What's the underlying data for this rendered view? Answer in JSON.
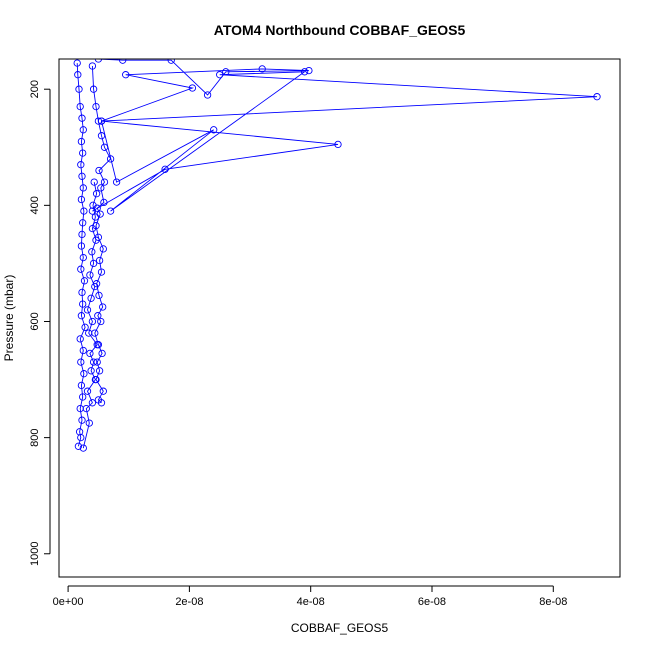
{
  "chart_data": {
    "type": "line",
    "title": "ATOM4 Northbound COBBAF_GEOS5",
    "xlabel": "COBBAF_GEOS5",
    "ylabel": "Pressure (mbar)",
    "xlim": [
      -1.5e-09,
      9.1e-08
    ],
    "ylim": [
      1040,
      148
    ],
    "y_inverted": true,
    "x_ticks": [
      0,
      2e-08,
      4e-08,
      6e-08,
      8e-08
    ],
    "x_tick_labels": [
      "0e+00",
      "2e-08",
      "4e-08",
      "6e-08",
      "8e-08"
    ],
    "y_ticks": [
      200,
      400,
      600,
      800,
      1000
    ],
    "y_tick_labels": [
      "200",
      "400",
      "600",
      "800",
      "1000"
    ],
    "marker": "open-circle",
    "series_color": "#0000ff",
    "grid": false,
    "series": [
      {
        "x": [
          1.7e-09,
          2.1e-09,
          1.9e-09,
          2.3e-09,
          2e-09,
          2.4e-09,
          2.2e-09,
          2.6e-09,
          2.1e-09,
          2.5e-09,
          2e-09,
          2.8e-09,
          2.2e-09,
          2.4e-09,
          2.3e-09,
          2.7e-09,
          2.1e-09,
          2.5e-09,
          2.2e-09,
          2.3e-09,
          2.4e-09,
          2.6e-09,
          2.2e-09,
          2.5e-09,
          2.3e-09,
          2.1e-09,
          2.4e-09,
          2.2e-09,
          2.5e-09,
          2.3e-09,
          2e-09,
          1.8e-09,
          1.6e-09,
          1.5e-09
        ],
        "y": [
          815,
          800,
          790,
          770,
          750,
          730,
          710,
          690,
          670,
          650,
          630,
          610,
          590,
          570,
          550,
          530,
          510,
          490,
          470,
          450,
          430,
          410,
          390,
          370,
          350,
          330,
          310,
          290,
          270,
          250,
          230,
          200,
          175,
          155
        ]
      },
      {
        "x": [
          2.5e-09,
          3.5e-09,
          3e-09,
          4e-09,
          3.2e-09,
          4.5e-09,
          3.8e-09,
          4.2e-09,
          3.6e-09,
          4.8e-09,
          3.4e-09,
          4e-09,
          3.2e-09,
          3.8e-09,
          4.4e-09,
          3.6e-09,
          4.2e-09,
          3.9e-09,
          4.6e-09,
          4e-09,
          4.5e-09,
          4.1e-09,
          4.7e-09,
          4.3e-09
        ],
        "y": [
          818,
          775,
          750,
          740,
          720,
          700,
          685,
          670,
          655,
          640,
          620,
          600,
          580,
          560,
          540,
          520,
          500,
          480,
          460,
          440,
          420,
          400,
          380,
          360
        ]
      },
      {
        "x": [
          5.5e-09,
          5e-09,
          5.8e-09,
          4.6e-09,
          5.2e-09,
          4.8e-09,
          5.6e-09,
          5e-09,
          4.4e-09,
          5.4e-09,
          4.9e-09,
          5.7e-09,
          5.1e-09,
          4.7e-09,
          5.5e-09,
          5.2e-09,
          5.8e-09,
          5e-09,
          4.6e-09,
          5.3e-09,
          4.8e-09,
          5.9e-09,
          5.4e-09,
          6e-09,
          5.1e-09,
          7e-09,
          6e-09,
          5.5e-09,
          5e-09,
          4.6e-09,
          4.2e-09,
          4e-09
        ],
        "y": [
          740,
          735,
          720,
          700,
          685,
          670,
          655,
          640,
          620,
          600,
          590,
          575,
          555,
          535,
          515,
          495,
          475,
          455,
          435,
          415,
          405,
          395,
          370,
          360,
          340,
          320,
          300,
          280,
          255,
          230,
          200,
          160
        ]
      },
      {
        "x": [
          4e-09,
          1.6e-08,
          4.45e-08,
          5.5e-09,
          8e-09,
          2.4e-08,
          7e-09,
          3.9e-08,
          2.5e-08,
          8.72e-08,
          5.5e-09,
          2.05e-08,
          9.5e-09,
          3.2e-08,
          3.97e-08,
          2.6e-08,
          2.3e-08,
          1.7e-08,
          9e-09,
          5e-09
        ],
        "y": [
          410,
          338,
          295,
          255,
          360,
          270,
          410,
          170,
          175,
          213,
          255,
          198,
          175,
          165,
          168,
          170,
          210,
          150,
          150,
          148
        ]
      }
    ]
  }
}
